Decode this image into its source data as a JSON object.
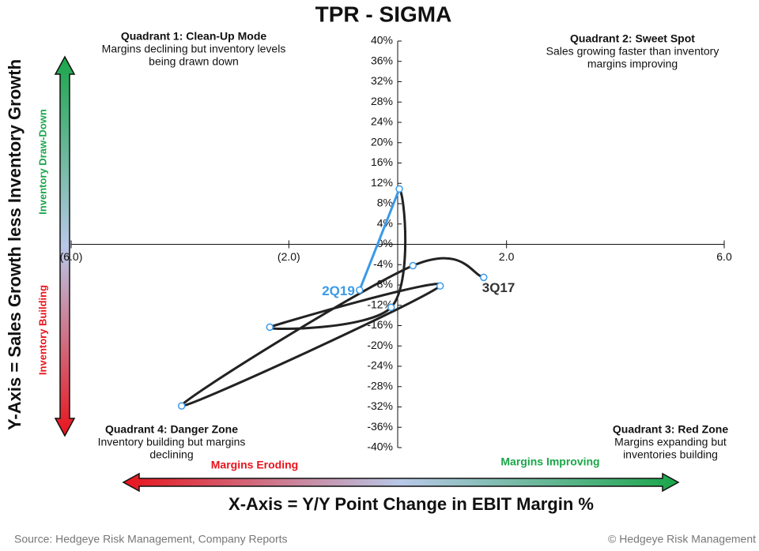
{
  "chart_data": {
    "type": "line",
    "title": "TPR - SIGMA",
    "x_label": "X-Axis = Y/Y Point Change in EBIT Margin %",
    "y_label": "Y-Axis = Sales Growth less Inventory Growth",
    "y_arrow_labels": {
      "top": "Inventory Draw-Down",
      "bottom": "Inventory Building"
    },
    "x_arrow_labels": {
      "left": "Margins Eroding",
      "right": "Margins Improving"
    },
    "quadrants": [
      {
        "title": "Quadrant 1: Clean-Up Mode",
        "lines": [
          "Margins declining but inventory levels",
          "being drawn down"
        ]
      },
      {
        "title": "Quadrant 2: Sweet Spot",
        "lines": [
          "Sales growing faster than  inventory",
          "margins improving"
        ]
      },
      {
        "title": "Quadrant 3: Red Zone",
        "lines": [
          "Margins expanding but",
          "inventories building"
        ]
      },
      {
        "title": "Quadrant 4: Danger Zone",
        "lines": [
          "Inventory building but margins",
          "declining"
        ]
      }
    ],
    "source": "Source: Hedgeye Risk Management, Company Reports",
    "copyright": "© Hedgeye Risk Management",
    "x": [
      1.58,
      0.28,
      -3.97,
      0.78,
      -2.35,
      -0.12,
      0.03,
      -0.7
    ],
    "values": [
      -6.5,
      -4.2,
      -31.8,
      -8.2,
      -16.3,
      -12.4,
      10.9,
      -9.0
    ],
    "point_labels": [
      "3Q17",
      null,
      null,
      null,
      null,
      null,
      null,
      "2Q19"
    ],
    "color": "#222222",
    "latest_color": "#3a9ae8",
    "xlim": [
      -6,
      6
    ],
    "ylim": [
      -40,
      40
    ],
    "xticks": [
      {
        "value": -6,
        "label": "(6.0)"
      },
      {
        "value": -2,
        "label": "(2.0)"
      },
      {
        "value": 2,
        "label": "2.0"
      },
      {
        "value": 6,
        "label": "6.0"
      }
    ],
    "yticks": [
      {
        "value": 40,
        "label": "40%"
      },
      {
        "value": 36,
        "label": "36%"
      },
      {
        "value": 32,
        "label": "32%"
      },
      {
        "value": 28,
        "label": "28%"
      },
      {
        "value": 24,
        "label": "24%"
      },
      {
        "value": 20,
        "label": "20%"
      },
      {
        "value": 16,
        "label": "16%"
      },
      {
        "value": 12,
        "label": "12%"
      },
      {
        "value": 8,
        "label": "8%"
      },
      {
        "value": 4,
        "label": "4%"
      },
      {
        "value": 0,
        "label": "0%"
      },
      {
        "value": -4,
        "label": "-4%"
      },
      {
        "value": -8,
        "label": "-8%"
      },
      {
        "value": -12,
        "label": "-12%"
      },
      {
        "value": -16,
        "label": "-16%"
      },
      {
        "value": -20,
        "label": "-20%"
      },
      {
        "value": -24,
        "label": "-24%"
      },
      {
        "value": -28,
        "label": "-28%"
      },
      {
        "value": -32,
        "label": "-32%"
      },
      {
        "value": -36,
        "label": "-36%"
      },
      {
        "value": -40,
        "label": "-40%"
      }
    ]
  }
}
